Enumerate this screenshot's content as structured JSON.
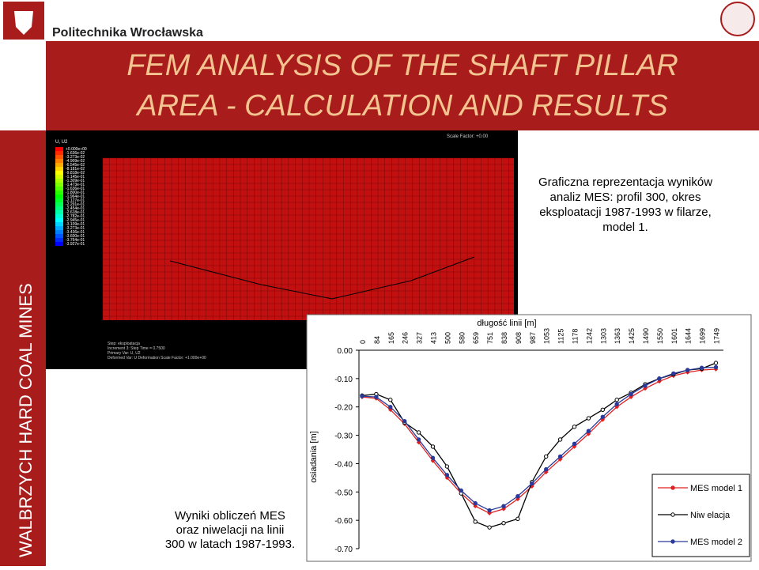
{
  "header": {
    "university": "Politechnika Wrocławska",
    "title_lines": [
      "FEM  ANALYSIS OF THE SHAFT PILLAR",
      "AREA - CALCULATION AND RESULTS"
    ],
    "side_text": "WALBRZYCH HARD COAL MINES"
  },
  "fem_image": {
    "legend_title": "U, U2",
    "scale_factor": "Scale Factor: +0.00",
    "contour_labels": [
      "+0.000e+00",
      "-1.636e-02",
      "-3.273e-02",
      "-4.909e-02",
      "-6.545e-02",
      "-8.181e-02",
      "-9.818e-02",
      "-1.145e-01",
      "-1.309e-01",
      "-1.473e-01",
      "-1.636e-01",
      "-1.800e-01",
      "-1.964e-01",
      "-2.127e-01",
      "-2.291e-01",
      "-2.454e-01",
      "-2.618e-01",
      "-2.782e-01",
      "-2.945e-01",
      "-3.109e-01",
      "-3.273e-01",
      "-3.436e-01",
      "-3.600e-01",
      "-3.764e-01",
      "-3.927e-01"
    ],
    "footer_lines": [
      "Step: eksploatacja",
      "Increment    3: Step Time =    0.7500",
      "Primary Var: U, U2",
      "Deformed Var: U   Deformation Scale Factor: +1.000e+00"
    ]
  },
  "description": {
    "lines": [
      "Graficzna reprezentacja wyników",
      "analiz MES: profil 300, okres",
      "eksploatacji 1987-1993 w filarze,",
      "model 1."
    ]
  },
  "caption": {
    "lines": [
      "Wyniki obliczeń MES",
      "oraz niwelacji na linii",
      "300 w latach 1987-1993."
    ]
  },
  "chart_data": {
    "type": "line",
    "x_label": "długość linii [m]",
    "y_label": "osiadania [m]",
    "categories": [
      "0",
      "84",
      "165",
      "246",
      "327",
      "413",
      "500",
      "580",
      "659",
      "751",
      "838",
      "908",
      "987",
      "1053",
      "1125",
      "1178",
      "1242",
      "1303",
      "1363",
      "1425",
      "1490",
      "1550",
      "1601",
      "1644",
      "1699",
      "1749"
    ],
    "ylim": [
      -0.7,
      0
    ],
    "yticks": [
      {
        "value": 0,
        "label": "0.00"
      },
      {
        "value": -0.1,
        "label": "-0.10"
      },
      {
        "value": -0.2,
        "label": "-0.20"
      },
      {
        "value": -0.3,
        "label": "-0.30"
      },
      {
        "value": -0.4,
        "label": "-0.40"
      },
      {
        "value": -0.5,
        "label": "-0.50"
      },
      {
        "value": -0.6,
        "label": "-0.60"
      },
      {
        "value": -0.7,
        "label": "-0.70"
      }
    ],
    "series": [
      {
        "name": "MES model 1",
        "color": "#e02020",
        "values": [
          -0.165,
          -0.17,
          -0.21,
          -0.26,
          -0.325,
          -0.39,
          -0.45,
          -0.505,
          -0.55,
          -0.575,
          -0.56,
          -0.525,
          -0.48,
          -0.43,
          -0.385,
          -0.34,
          -0.295,
          -0.245,
          -0.2,
          -0.165,
          -0.135,
          -0.11,
          -0.09,
          -0.078,
          -0.07,
          -0.067
        ]
      },
      {
        "name": "Niw elacja",
        "color": "#000000",
        "values": [
          -0.16,
          -0.155,
          -0.175,
          -0.255,
          -0.29,
          -0.34,
          -0.41,
          -0.505,
          -0.605,
          -0.625,
          -0.61,
          -0.595,
          -0.465,
          -0.375,
          -0.315,
          -0.27,
          -0.24,
          -0.21,
          -0.175,
          -0.15,
          -0.12,
          -0.1,
          -0.085,
          -0.07,
          -0.065,
          -0.045
        ]
      },
      {
        "name": "MES model 2",
        "color": "#2a3a9a",
        "values": [
          -0.162,
          -0.165,
          -0.2,
          -0.25,
          -0.315,
          -0.38,
          -0.44,
          -0.495,
          -0.54,
          -0.565,
          -0.55,
          -0.515,
          -0.47,
          -0.42,
          -0.375,
          -0.33,
          -0.285,
          -0.235,
          -0.19,
          -0.155,
          -0.125,
          -0.1,
          -0.082,
          -0.07,
          -0.062,
          -0.06
        ]
      }
    ]
  }
}
